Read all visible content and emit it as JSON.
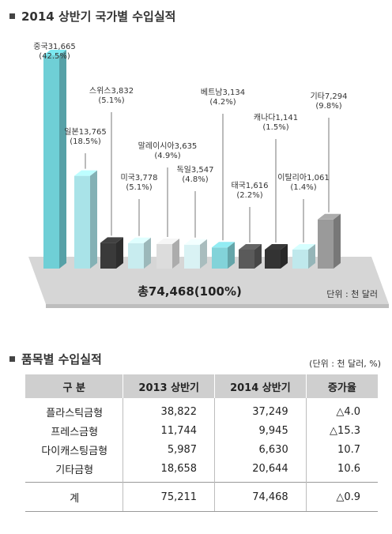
{
  "section1": {
    "title": "2014 상반기 국가별 수입실적"
  },
  "chart_data": {
    "type": "bar",
    "categories": [
      "중국",
      "일본",
      "스위스",
      "미국",
      "말레이시아",
      "독일",
      "베트남",
      "태국",
      "캐나다",
      "이탈리아",
      "기타"
    ],
    "values": [
      31665,
      13765,
      3832,
      3778,
      3635,
      3547,
      3134,
      1616,
      1141,
      1061,
      7294
    ],
    "shares": [
      "(42.5%)",
      "(18.5%)",
      "(5.1%)",
      "(5.1%)",
      "(4.9%)",
      "(4.8%)",
      "(4.2%)",
      "(2.2%)",
      "(1.5%)",
      "(1.4%)",
      "(9.8%)"
    ],
    "value_labels": [
      "31,665",
      "13,765",
      "3,832",
      "3,778",
      "3,635",
      "3,547",
      "3,134",
      "1,616",
      "1,141",
      "1,061",
      "7,294"
    ],
    "bar_colors": [
      "#6fcfd6",
      "#a9e3e8",
      "#3a3a3a",
      "#c8ecef",
      "#dcdcdc",
      "#d9f2f4",
      "#82d3d9",
      "#5a5a5a",
      "#333333",
      "#bfe8ec",
      "#9a9a9a"
    ],
    "total_label": "총74,468(100%)",
    "unit_label": "단위 : 천 달러"
  },
  "section2": {
    "title": "품목별 수입실적",
    "unit": "(단위 : 천 달러, %)",
    "headers": [
      "구  분",
      "2013 상반기",
      "2014 상반기",
      "증가율"
    ],
    "rows": [
      [
        "플라스틱금형",
        "38,822",
        "37,249",
        "△4.0"
      ],
      [
        "프레스금형",
        "11,744",
        "9,945",
        "△15.3"
      ],
      [
        "다이캐스팅금형",
        "5,987",
        "6,630",
        "10.7"
      ],
      [
        "기타금형",
        "18,658",
        "20,644",
        "10.6"
      ]
    ],
    "total": [
      "계",
      "75,211",
      "74,468",
      "△0.9"
    ]
  }
}
